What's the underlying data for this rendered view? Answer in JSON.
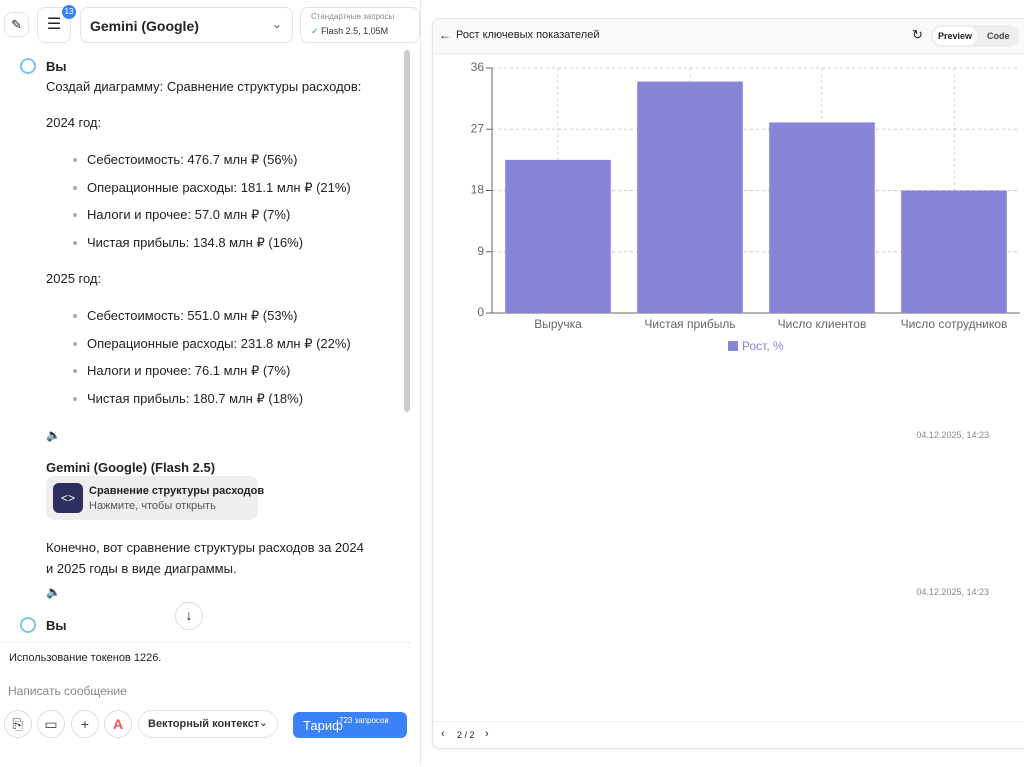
{
  "header": {
    "badge": "13",
    "model": "Gemini (Google)",
    "plan_label": "Стандартные запросы",
    "plan_value": "Flash 2.5, 1,05M"
  },
  "messages": [
    {
      "author": "Вы",
      "intro": "Создай диаграмму: Сравнение структуры расходов:",
      "sections": [
        {
          "heading": "2024 год:",
          "items": [
            "Себестоимость: 476.7 млн ₽ (56%)",
            "Операционные расходы: 181.1 млн ₽ (21%)",
            "Налоги и прочее: 57.0 млн ₽ (7%)",
            "Чистая прибыль: 134.8 млн ₽ (16%)"
          ]
        },
        {
          "heading": "2025 год:",
          "items": [
            "Себестоимость: 551.0 млн ₽ (53%)",
            "Операционные расходы: 231.8 млн ₽ (22%)",
            "Налоги и прочее: 76.1 млн ₽ (7%)",
            "Чистая прибыль: 180.7 млн ₽ (18%)"
          ]
        }
      ],
      "time": "04.12.2025, 14:23"
    },
    {
      "author": "Gemini (Google) (Flash 2.5)",
      "card": {
        "title": "Сравнение структуры расходов",
        "subtitle": "Нажмите, чтобы открыть"
      },
      "text": "Конечно, вот сравнение структуры расходов за 2024 и 2025 годы в виде диаграммы.",
      "time": "04.12.2025, 14:23"
    },
    {
      "author": "Вы"
    }
  ],
  "footer": {
    "tokens": "Использование токенов 1226.",
    "placeholder": "Написать сообщение",
    "context": "Векторный контекст",
    "tariff": "Тариф",
    "tariff_count": "723 запросов"
  },
  "preview": {
    "tabs": [
      "Preview",
      "Code"
    ],
    "pager": "2 / 2"
  },
  "chart_data": {
    "type": "bar",
    "title": "Рост ключевых показателей",
    "categories": [
      "Выручка",
      "Чистая прибыль",
      "Число клиентов",
      "Число сотрудников"
    ],
    "series": [
      {
        "name": "Рост, %",
        "color": "#8884d8",
        "values": [
          22.5,
          34,
          28,
          18
        ]
      }
    ],
    "ylim": [
      0,
      36
    ],
    "yticks": [
      0,
      9,
      18,
      27,
      36
    ],
    "grid": true
  }
}
